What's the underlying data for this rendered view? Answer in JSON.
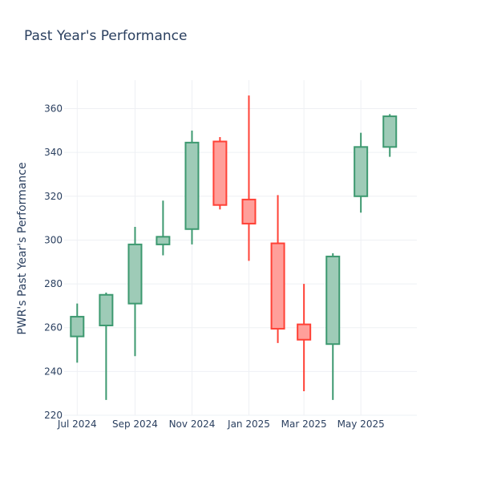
{
  "chart_data": {
    "type": "candlestick",
    "title": "Past Year's Performance",
    "ylabel": "PWR's Past Year's Performance",
    "xlabel": "",
    "ylim": [
      220,
      373
    ],
    "y_ticks": [
      220,
      240,
      260,
      280,
      300,
      320,
      340,
      360
    ],
    "x_ticks": [
      {
        "label": "Jul 2024",
        "date": "2024-07-01"
      },
      {
        "label": "Sep 2024",
        "date": "2024-09-01"
      },
      {
        "label": "Nov 2024",
        "date": "2024-11-01"
      },
      {
        "label": "Jan 2025",
        "date": "2025-01-01"
      },
      {
        "label": "Mar 2025",
        "date": "2025-03-01"
      },
      {
        "label": "May 2025",
        "date": "2025-05-01"
      }
    ],
    "x_range": [
      "2024-06-17",
      "2025-06-30"
    ],
    "grid": true,
    "colors": {
      "increasing": "#3d9970",
      "decreasing": "#ff4136",
      "increasing_fill": "#9ecbb7",
      "decreasing_fill": "#ff9f9a"
    },
    "candles": [
      {
        "date": "2024-07-01",
        "open": 256,
        "high": 271,
        "low": 244,
        "close": 265
      },
      {
        "date": "2024-08-01",
        "open": 261,
        "high": 276,
        "low": 227,
        "close": 275
      },
      {
        "date": "2024-09-01",
        "open": 271,
        "high": 306,
        "low": 247,
        "close": 298
      },
      {
        "date": "2024-10-01",
        "open": 298,
        "high": 318,
        "low": 293,
        "close": 301.5
      },
      {
        "date": "2024-11-01",
        "open": 305,
        "high": 350,
        "low": 298,
        "close": 344.5
      },
      {
        "date": "2024-12-01",
        "open": 345,
        "high": 347,
        "low": 314,
        "close": 316
      },
      {
        "date": "2025-01-01",
        "open": 318.5,
        "high": 366,
        "low": 290.5,
        "close": 307.5
      },
      {
        "date": "2025-02-01",
        "open": 298.5,
        "high": 320.5,
        "low": 253,
        "close": 259.5
      },
      {
        "date": "2025-03-01",
        "open": 261.5,
        "high": 280,
        "low": 231,
        "close": 254.5
      },
      {
        "date": "2025-04-01",
        "open": 252.5,
        "high": 294,
        "low": 227,
        "close": 292.5
      },
      {
        "date": "2025-05-01",
        "open": 320,
        "high": 349,
        "low": 312.5,
        "close": 342.5
      },
      {
        "date": "2025-06-01",
        "open": 342.5,
        "high": 357.5,
        "low": 338,
        "close": 356.5
      }
    ]
  }
}
